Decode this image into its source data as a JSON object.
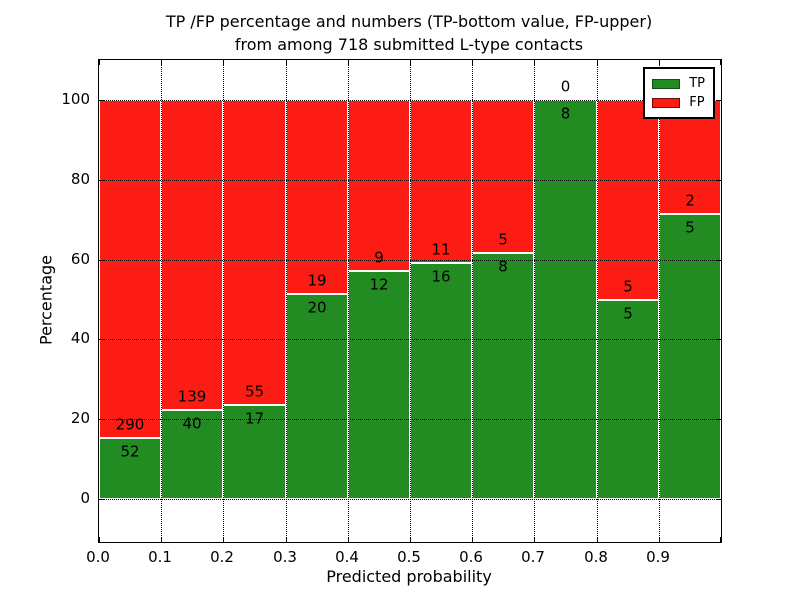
{
  "figure": {
    "title_line1": "TP /FP percentage and numbers (TP-bottom value, FP-upper)",
    "title_line2": "from among 718 submitted L-type contacts",
    "total_contacts": 718
  },
  "chart_data": {
    "type": "bar",
    "stacked": true,
    "normalized_to_percent": true,
    "title": "TP /FP percentage and numbers (TP-bottom value, FP-upper) from among 718 submitted L-type contacts",
    "xlabel": "Predicted probability",
    "ylabel": "Percentage",
    "xlim": [
      0.0,
      1.0
    ],
    "ylim": [
      -11,
      110
    ],
    "grid": "dotted",
    "legend_position": "upper right",
    "categories": [
      "0.0-0.1",
      "0.1-0.2",
      "0.2-0.3",
      "0.3-0.4",
      "0.4-0.5",
      "0.5-0.6",
      "0.6-0.7",
      "0.7-0.8",
      "0.8-0.9",
      "0.9-1.0"
    ],
    "xticklabels": [
      "0.0",
      "0.1",
      "0.2",
      "0.3",
      "0.4",
      "0.5",
      "0.6",
      "0.7",
      "0.8",
      "0.9"
    ],
    "yticks": [
      0,
      20,
      40,
      60,
      80,
      100
    ],
    "series": [
      {
        "name": "TP",
        "color": "#228b22",
        "counts": [
          52,
          40,
          17,
          20,
          12,
          16,
          8,
          8,
          5,
          5
        ]
      },
      {
        "name": "FP",
        "color": "#fc1c13",
        "counts": [
          290,
          139,
          55,
          19,
          9,
          11,
          5,
          0,
          5,
          2
        ]
      }
    ],
    "tp_percent": [
      15.2,
      22.3,
      23.6,
      51.3,
      57.1,
      59.3,
      61.5,
      100.0,
      50.0,
      71.4
    ]
  },
  "colors": {
    "tp": "#228b22",
    "fp": "#fc1c13",
    "grid": "#000000",
    "frame": "#000000",
    "background": "#ffffff",
    "text": "#000000"
  }
}
